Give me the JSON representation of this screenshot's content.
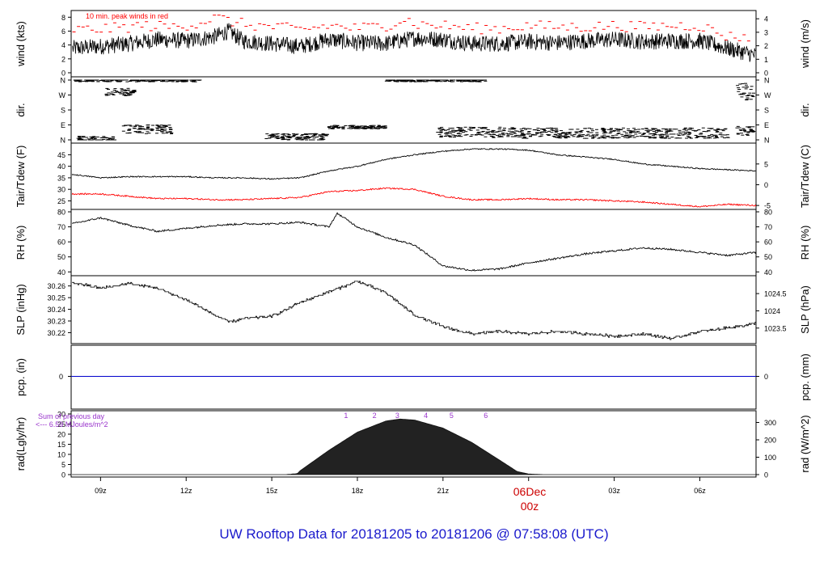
{
  "title": "UW Rooftop Data for 20181205  to  20181206 @ 07:58:08  (UTC)",
  "colors": {
    "series": "#000000",
    "peak": "#ff0000",
    "dew": "#ff0000",
    "pcp": "#0000cc",
    "title": "#1a1acc",
    "note": "#9933cc",
    "frame": "#000000"
  },
  "x_axis": {
    "ticks": [
      "09z",
      "12z",
      "15z",
      "18z",
      "21z",
      "",
      "03z",
      "06z"
    ],
    "date_label": "06Dec",
    "date_sub": "00z"
  },
  "panels": {
    "wind": {
      "left_label": "wind (kts)",
      "right_label": "wind (m/s)",
      "annotation": "10 min. peak winds in red",
      "left_ticks": [
        "0",
        "2",
        "4",
        "6",
        "8"
      ],
      "right_ticks": [
        "0",
        "1",
        "2",
        "3",
        "4"
      ]
    },
    "dir": {
      "left_label": "dir.",
      "right_label": "dir.",
      "left_ticks": [
        "N",
        "E",
        "S",
        "W",
        "N"
      ],
      "right_ticks": [
        "N",
        "E",
        "S",
        "W",
        "N"
      ]
    },
    "temp": {
      "left_label": "Tair/Tdew (F)",
      "right_label": "Tair/Tdew (C)",
      "left_ticks": [
        "25",
        "30",
        "35",
        "40",
        "45"
      ],
      "right_ticks": [
        "-5",
        "0",
        "5"
      ]
    },
    "rh": {
      "left_label": "RH (%)",
      "right_label": "RH (%)",
      "left_ticks": [
        "40",
        "50",
        "60",
        "70",
        "80"
      ],
      "right_ticks": [
        "40",
        "50",
        "60",
        "70",
        "80"
      ]
    },
    "slp": {
      "left_label": "SLP (inHg)",
      "right_label": "SLP (hPa)",
      "left_ticks": [
        "30.22",
        "30.23",
        "30.24",
        "30.25",
        "30.26"
      ],
      "right_ticks": [
        "1023.5",
        "1024",
        "1024.5"
      ]
    },
    "pcp": {
      "left_label": "pcp. (in)",
      "right_label": "pcp. (mm)",
      "left_ticks": [
        "0"
      ],
      "right_ticks": [
        "0"
      ]
    },
    "rad": {
      "left_label": "rad(Lgly/hr)",
      "right_label": "rad (W/m^2)",
      "left_ticks": [
        "0",
        "5",
        "10",
        "15",
        "20",
        "25",
        "30"
      ],
      "right_ticks": [
        "0",
        "100",
        "200",
        "300"
      ],
      "sum_line1": "Sum of previous day",
      "sum_line2": "<--- 6.59 MJoules/m^2",
      "uv_labels": [
        "1",
        "2",
        "3",
        "4",
        "5",
        "6"
      ]
    }
  },
  "chart_data": {
    "type": "line",
    "x_range_hours_utc": [
      "2018-12-05 07:58",
      "2018-12-06 07:58"
    ],
    "series": [
      {
        "name": "wind (kts)",
        "x_hours": [
          8.0,
          9,
          10,
          11,
          12,
          13,
          13.5,
          14,
          15,
          16,
          17,
          18,
          19,
          20,
          21,
          22,
          23,
          24,
          25,
          26,
          27,
          28,
          29,
          30,
          31,
          31.97
        ],
        "values": [
          3.5,
          3.8,
          4.2,
          4.8,
          4.6,
          5.2,
          6.0,
          4.6,
          4.2,
          3.8,
          4.8,
          4.3,
          4.2,
          5.0,
          4.8,
          4.2,
          4.2,
          4.5,
          4.3,
          4.6,
          4.8,
          4.5,
          4.6,
          4.6,
          3.5,
          2.5
        ]
      },
      {
        "name": "10 min. peak winds",
        "x_hours": [
          8.5,
          9.5,
          10.5,
          11.5,
          12.5,
          13,
          14,
          15,
          16,
          17,
          18,
          19,
          19.7,
          20,
          21,
          22,
          23,
          24,
          25,
          26,
          27,
          28,
          29,
          30,
          31
        ],
        "values": [
          6.2,
          6.4,
          6.8,
          6.6,
          7.2,
          8.0,
          7.0,
          6.6,
          6.2,
          6.8,
          6.4,
          6.8,
          7.8,
          7.0,
          6.8,
          6.4,
          6.4,
          6.8,
          6.6,
          6.6,
          6.8,
          6.6,
          6.8,
          6.8,
          5.2
        ]
      },
      {
        "name": "Tair (F)",
        "x_hours": [
          8.0,
          9,
          10,
          11,
          12,
          13,
          14,
          15,
          16,
          17,
          18,
          19,
          20,
          21,
          22,
          23,
          24,
          25,
          26,
          27,
          28,
          29,
          30,
          31,
          31.97
        ],
        "values": [
          36.5,
          35,
          35.5,
          35.5,
          35.5,
          35,
          35,
          34.5,
          35,
          38,
          40,
          43,
          45,
          46.5,
          47.5,
          47.5,
          47,
          45,
          44,
          43,
          41,
          40,
          39,
          38.5,
          38
        ]
      },
      {
        "name": "Tdew (F)",
        "x_hours": [
          8.0,
          9,
          10,
          11,
          12,
          13,
          14,
          15,
          16,
          17,
          18,
          19,
          20,
          21,
          22,
          23,
          24,
          25,
          26,
          27,
          28,
          29,
          30,
          31,
          31.97
        ],
        "values": [
          28,
          28,
          27,
          26,
          26,
          25.5,
          25.5,
          26,
          26.5,
          29,
          29.5,
          30.5,
          30,
          27,
          25.5,
          25.5,
          26,
          25.5,
          25.5,
          25,
          24.5,
          23.5,
          22.5,
          23.5,
          23
        ]
      },
      {
        "name": "RH (%)",
        "x_hours": [
          8.0,
          9,
          10,
          11,
          12,
          13,
          14,
          15,
          16,
          17,
          17.3,
          18,
          19,
          20,
          21,
          22,
          23,
          24,
          25,
          26,
          27,
          28,
          29,
          30,
          31,
          31.97
        ],
        "values": [
          72,
          76,
          71,
          67,
          69,
          71,
          72,
          72,
          73,
          70,
          79,
          70,
          63,
          58,
          44,
          41,
          42,
          46,
          49,
          52,
          54,
          56,
          55,
          53,
          51,
          53
        ]
      },
      {
        "name": "SLP (inHg)",
        "x_hours": [
          8.0,
          9,
          10,
          11,
          12,
          13,
          13.5,
          14,
          15,
          16,
          17,
          18,
          19,
          20,
          21,
          22,
          23,
          24,
          25,
          26,
          27,
          28,
          29,
          30,
          31,
          31.97
        ],
        "values": [
          30.263,
          30.258,
          30.262,
          30.258,
          30.248,
          30.235,
          30.229,
          30.232,
          30.234,
          30.246,
          30.255,
          30.264,
          30.254,
          30.235,
          30.225,
          30.219,
          30.221,
          30.219,
          30.221,
          30.219,
          30.217,
          30.219,
          30.215,
          30.221,
          30.224,
          30.228
        ]
      },
      {
        "name": "pcp (in)",
        "x_hours": [
          8.0,
          31.97
        ],
        "values": [
          0,
          0
        ]
      },
      {
        "name": "rad (Lgly/hr)",
        "x_hours": [
          8.0,
          15.5,
          15.9,
          16.0,
          17,
          18,
          19,
          19.5,
          20,
          21,
          22,
          23,
          23.6,
          24,
          24.5,
          31.97
        ],
        "values": [
          0,
          0,
          0.5,
          2.0,
          12,
          21,
          26.5,
          27.5,
          27,
          23,
          16,
          7,
          1.5,
          0.3,
          0,
          0
        ]
      }
    ],
    "direction_bands": [
      "N",
      "E",
      "S",
      "W",
      "N"
    ],
    "grid": false,
    "legend": "top-left annotation in wind panel"
  }
}
